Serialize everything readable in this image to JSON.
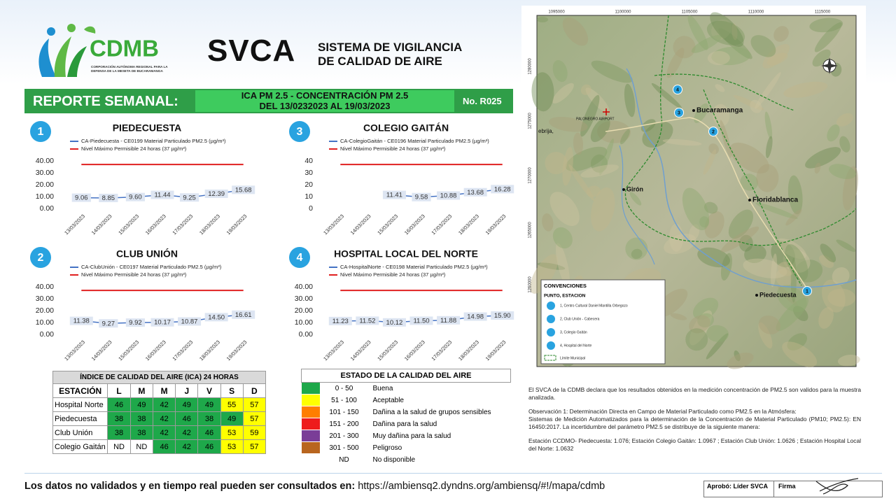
{
  "header": {
    "org": "CDMB",
    "org_subtitle": [
      "CORPORACIÓN AUTÓNOMA REGIONAL PARA LA",
      "DEFENSA DE LA MESETA DE BUCARAMANGA"
    ],
    "title": "SVCA",
    "subtitle": [
      "SISTEMA DE VIGILANCIA",
      "DE CALIDAD DE AIRE"
    ]
  },
  "report_bar": {
    "label": "REPORTE SEMANAL:",
    "lines": [
      "ICA PM 2.5 - CONCENTRACIÓN PM 2.5",
      "DEL 13/0232023 AL 19/03/2023"
    ],
    "number": "No. R025"
  },
  "chart_data": [
    {
      "type": "line",
      "number": "1",
      "title": "PIEDECUESTA",
      "categories": [
        "13/03/2023",
        "14/03/2023",
        "15/03/2023",
        "16/03/2023",
        "17/03/2023",
        "18/03/2023",
        "19/03/2023"
      ],
      "series": [
        {
          "name": "CA-Piedecuesta - CE0199 Material Particulado PM2.5 (µg/m³)",
          "color": "#4472c4",
          "show_values": true,
          "values": [
            9.06,
            8.85,
            9.6,
            11.44,
            9.25,
            12.39,
            15.68
          ],
          "value_labels": [
            "9.06",
            "8.85",
            "9.60",
            "11.44",
            "9.25",
            "12.39",
            "15.68"
          ]
        },
        {
          "name": "Nivel Máximo Permisible 24 horas (37 µg/m³)",
          "color": "#e02020",
          "values": [
            37,
            37,
            37,
            37,
            37,
            37,
            37
          ]
        }
      ],
      "ylim": [
        0,
        40
      ],
      "yticks": [
        {
          "value": 0,
          "label": "0.00"
        },
        {
          "value": 10,
          "label": "10.00"
        },
        {
          "value": 20,
          "label": "20.00"
        },
        {
          "value": 30,
          "label": "30.00"
        },
        {
          "value": 40,
          "label": "40.00"
        }
      ]
    },
    {
      "type": "line",
      "number": "2",
      "title": "CLUB UNIÓN",
      "categories": [
        "13/03/2023",
        "14/03/2023",
        "15/03/2023",
        "16/03/2023",
        "17/03/2023",
        "18/03/2023",
        "19/03/2023"
      ],
      "series": [
        {
          "name": "CA-ClubUnión - CE0197 Material Particulado PM2.5 (µg/m³)",
          "color": "#4472c4",
          "show_values": true,
          "values": [
            11.38,
            9.27,
            9.92,
            10.17,
            10.87,
            14.5,
            16.61
          ],
          "value_labels": [
            "11.38",
            "9.27",
            "9.92",
            "10.17",
            "10.87",
            "14.50",
            "16.61"
          ]
        },
        {
          "name": "Nivel Máximo Permisible 24 horas (37 µg/m³)",
          "color": "#e02020",
          "values": [
            37,
            37,
            37,
            37,
            37,
            37,
            37
          ]
        }
      ],
      "ylim": [
        0,
        40
      ],
      "yticks": [
        {
          "value": 0,
          "label": "0.00"
        },
        {
          "value": 10,
          "label": "10.00"
        },
        {
          "value": 20,
          "label": "20.00"
        },
        {
          "value": 30,
          "label": "30.00"
        },
        {
          "value": 40,
          "label": "40.00"
        }
      ]
    },
    {
      "type": "line",
      "number": "3",
      "title": "COLEGIO GAITÁN",
      "categories": [
        "13/03/2023",
        "14/03/2023",
        "15/03/2023",
        "16/03/2023",
        "17/03/2023",
        "18/03/2023",
        "19/03/2023"
      ],
      "series": [
        {
          "name": "CA-ColegioGaitán - CE0196 Material Particulado PM2.5 (µg/m³)",
          "color": "#4472c4",
          "show_values": true,
          "values": [
            null,
            null,
            11.41,
            9.58,
            10.88,
            13.68,
            16.28
          ]
        },
        {
          "name": "Nivel Máximo Permisible 24 horas (37 µg/m³)",
          "color": "#e02020",
          "values": [
            37,
            37,
            37,
            37,
            37,
            37,
            37
          ]
        }
      ],
      "ylim": [
        0,
        40
      ],
      "yticks": [
        0,
        10,
        20,
        30,
        40
      ]
    },
    {
      "type": "line",
      "number": "4",
      "title": "HOSPITAL LOCAL DEL NORTE",
      "categories": [
        "13/03/2023",
        "14/03/2023",
        "15/03/2023",
        "16/03/2023",
        "17/03/2023",
        "18/03/2023",
        "19/03/2023"
      ],
      "series": [
        {
          "name": "CA-HospitalNorte - CE0198 Material Particulado PM2.5 (µg/m³)",
          "color": "#4472c4",
          "show_values": true,
          "values": [
            11.23,
            11.52,
            10.12,
            11.5,
            11.88,
            14.98,
            15.9
          ],
          "value_labels": [
            "11.23",
            "11.52",
            "10.12",
            "11.50",
            "11.88",
            "14.98",
            "15.90"
          ]
        },
        {
          "name": "Nivel Máximo Permisible 24 horas (37 µg/m³)",
          "color": "#e02020",
          "values": [
            37,
            37,
            37,
            37,
            37,
            37,
            37
          ]
        }
      ],
      "ylim": [
        0,
        40
      ],
      "yticks": [
        {
          "value": 0,
          "label": "0.00"
        },
        {
          "value": 10,
          "label": "10.00"
        },
        {
          "value": 20,
          "label": "20.00"
        },
        {
          "value": 30,
          "label": "30.00"
        },
        {
          "value": 40,
          "label": "40.00"
        }
      ]
    }
  ],
  "ica_table": {
    "title": "ÍNDICE DE CALIDAD DEL AIRE (ICA) 24 HORAS",
    "header": [
      "ESTACIÓN",
      "L",
      "M",
      "M",
      "J",
      "V",
      "S",
      "D"
    ],
    "rows": [
      {
        "station": "Hospital Norte",
        "values": [
          46,
          49,
          42,
          49,
          49,
          55,
          57
        ]
      },
      {
        "station": "Piedecuesta",
        "values": [
          38,
          38,
          42,
          46,
          38,
          49,
          57
        ]
      },
      {
        "station": "Club Unión",
        "values": [
          38,
          38,
          42,
          42,
          46,
          53,
          59
        ]
      },
      {
        "station": "Colegio Gaitán",
        "values": [
          "ND",
          "ND",
          46,
          42,
          46,
          53,
          57
        ]
      }
    ]
  },
  "estado_table": {
    "title": "ESTADO DE LA CALIDAD DEL AIRE",
    "rows": [
      {
        "range": "0 - 50",
        "label": "Buena",
        "color": "#1ea84a"
      },
      {
        "range": "51 - 100",
        "label": "Aceptable",
        "color": "#ffff00"
      },
      {
        "range": "101 - 150",
        "label": "Dañina a la salud de grupos sensibles",
        "color": "#ff7e00"
      },
      {
        "range": "151 - 200",
        "label": "Dañina para la salud",
        "color": "#ee1c1c"
      },
      {
        "range": "201 - 300",
        "label": "Muy dañina para la salud",
        "color": "#7a3d97"
      },
      {
        "range": "301 - 500",
        "label": "Peligroso",
        "color": "#b8651f"
      },
      {
        "range": "ND",
        "label": "No disponible"
      }
    ]
  },
  "map": {
    "x_coords": [
      "1095000",
      "1100000",
      "1105000",
      "1110000",
      "1115000"
    ],
    "y_coords": [
      "1280000",
      "1275000",
      "1270000",
      "1265000",
      "1260000"
    ],
    "places": [
      "Bucaramanga",
      "Floridablanca",
      "Girón",
      "Piedecuesta",
      "PALONEGRO AIRPORT",
      "ebrija,"
    ],
    "markers": [
      "1",
      "2",
      "3",
      "4"
    ],
    "legend_title": "CONVENCIONES",
    "legend_subtitle": "PUNTO, ESTACION",
    "legend_items": [
      "1, Centro Cultural Daniel Mantilla Orbegozo",
      "2, Club Unión - Cabecera",
      "3, Colegio Gaitán",
      "4, Hospital del Norte"
    ],
    "boundary_label": "Límite Municipal"
  },
  "notes": [
    "El SVCA  de la CDMB declara que los resultados obtenidos en la medición concentración de PM2.5 son validos para la muestra  analizada.",
    "Observación 1: Determinación Directa en Campo de Material Particulado como PM2.5 en la Atmósfera:",
    "Sistemas de Medición Automatizados para la  determinación de la Concentración de Material Particulado (PM10; PM2.5): EN 16450:2017. La incertidumbre del parámetro PM2.5 se distribuye de la siguiente manera:",
    "Estación CCDMO- Piedecuesta: 1.076; Estación Colegio Gaitán: 1.0967 ; Estación Club Unión: 1.0626 ; Estación Hospital Local del Norte: 1.0632"
  ],
  "footer": {
    "text": "Los datos no validados y en tiempo real pueden ser consultados en:",
    "url": "https://ambiensq2.dyndns.org/ambiensq/#!/mapa/cdmb",
    "approved": "Aprobó: Líder SVCA",
    "signature": "Firma"
  }
}
